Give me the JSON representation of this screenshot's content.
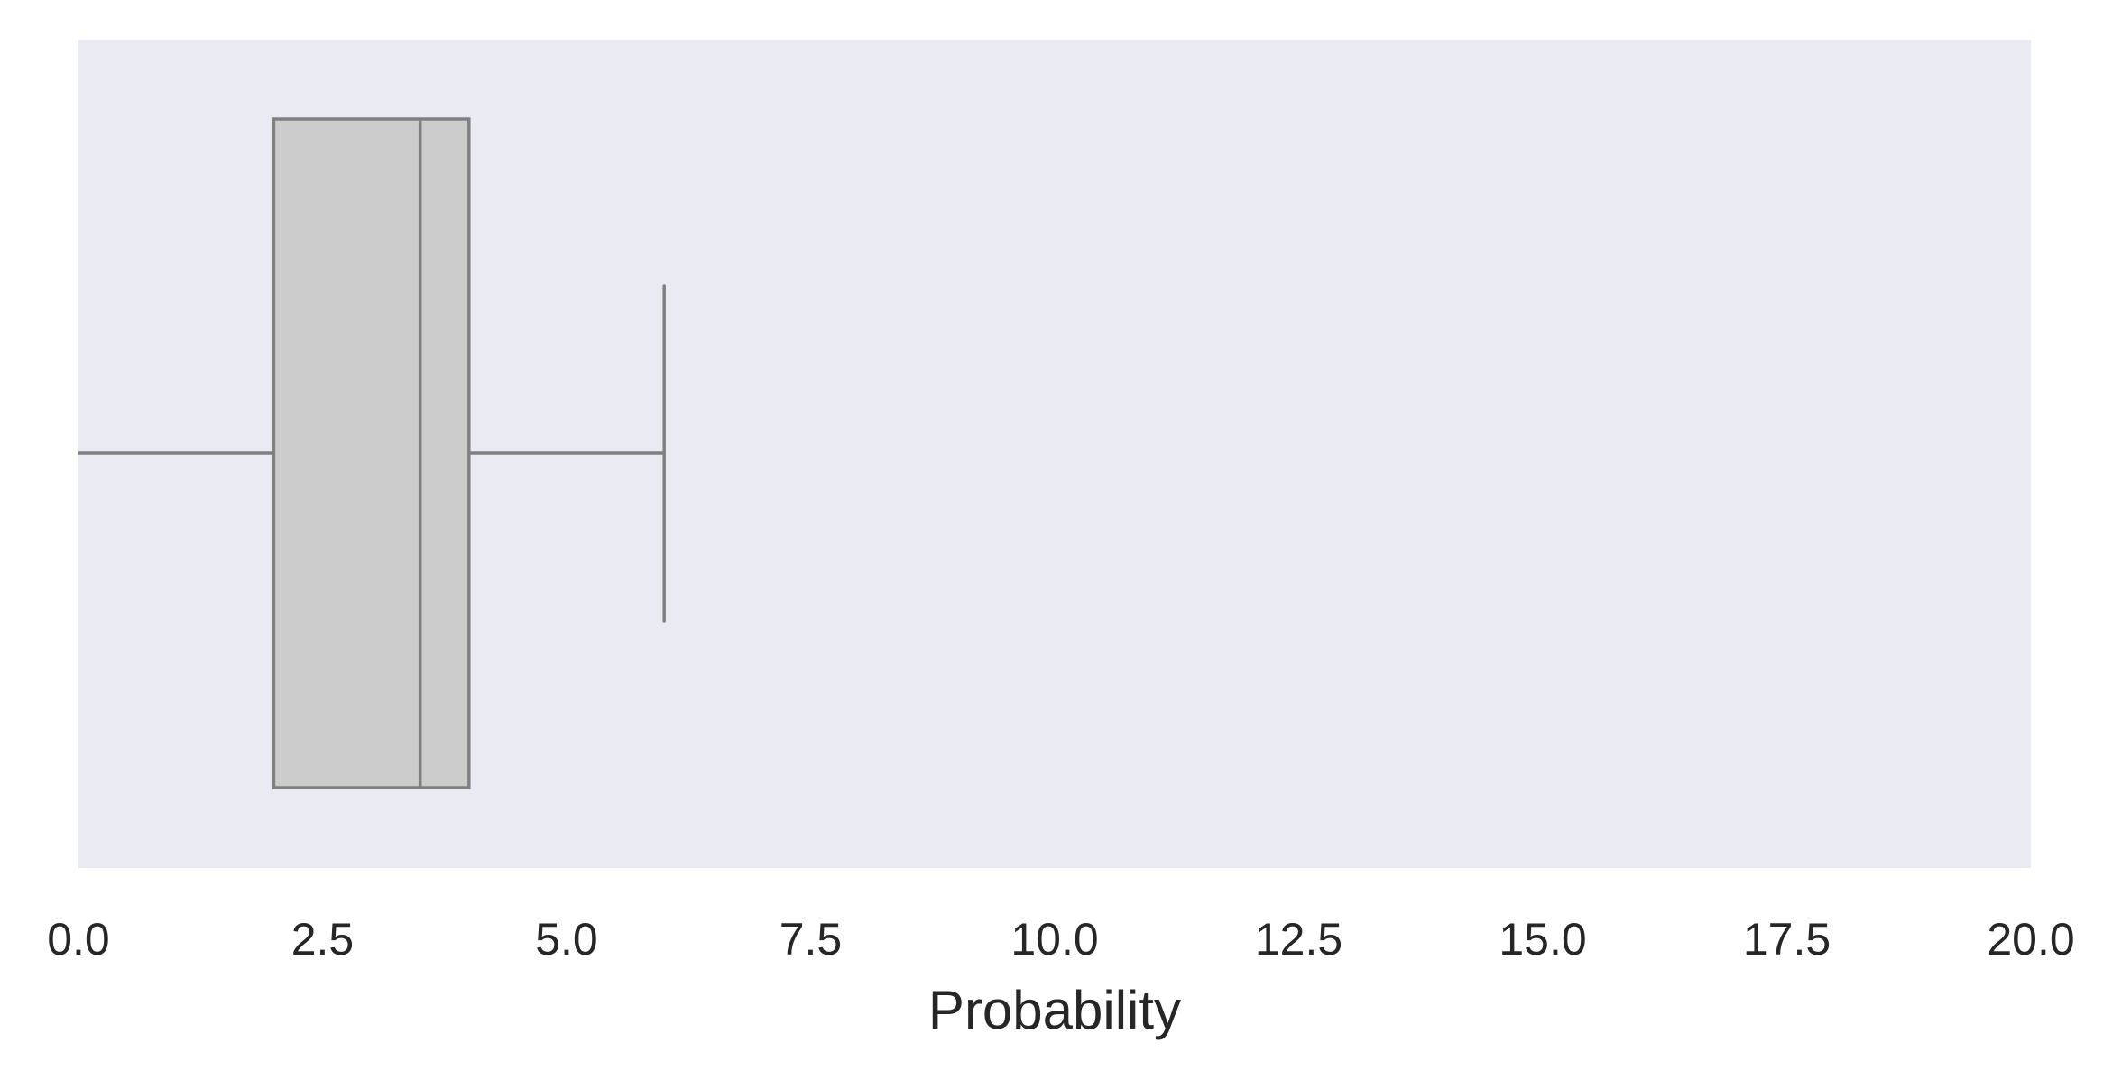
{
  "chart_data": {
    "type": "box",
    "orientation": "horizontal",
    "title": "",
    "xlabel": "Probability",
    "ylabel": "",
    "xlim": [
      0,
      20
    ],
    "xticks": [
      0,
      2.5,
      5,
      7.5,
      10,
      12.5,
      15,
      17.5,
      20
    ],
    "xtick_labels": [
      "0.0",
      "2.5",
      "5.0",
      "7.5",
      "10.0",
      "12.5",
      "15.0",
      "17.5",
      "20.0"
    ],
    "grid": false,
    "legend": "none",
    "box": {
      "whisker_low": 0.0,
      "q1": 2.0,
      "median": 3.5,
      "q3": 4.0,
      "whisker_high": 6.0
    },
    "colors": {
      "plot_background": "#eaeaf2",
      "box_fill": "#cccccc",
      "box_edge": "#808080",
      "text": "#262626"
    }
  }
}
